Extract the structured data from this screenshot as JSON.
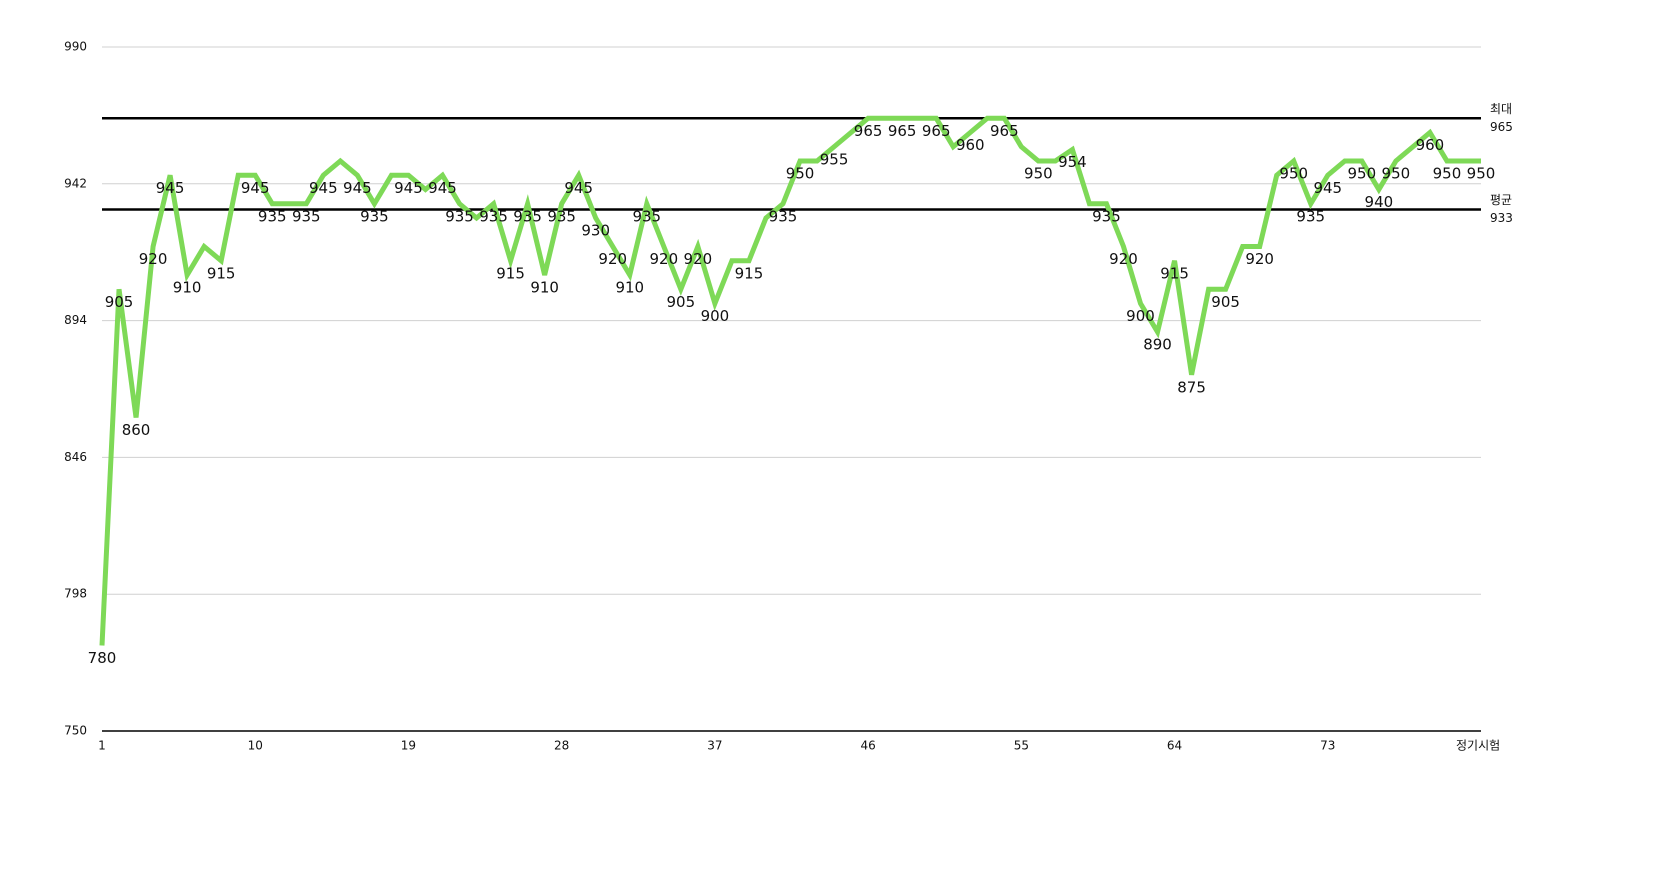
{
  "chart_data": {
    "type": "line",
    "x_label": "정기시험",
    "x": [
      1,
      2,
      3,
      4,
      5,
      6,
      7,
      8,
      9,
      10,
      11,
      12,
      13,
      14,
      15,
      16,
      17,
      18,
      19,
      20,
      21,
      22,
      23,
      24,
      25,
      26,
      27,
      28,
      29,
      30,
      31,
      32,
      33,
      34,
      35,
      36,
      37,
      38,
      39,
      40,
      41,
      42,
      43,
      44,
      45,
      46,
      47,
      48,
      49,
      50,
      51,
      52,
      53,
      54,
      55,
      56,
      57,
      58,
      59,
      60,
      61,
      62,
      63,
      64,
      65,
      66,
      67,
      68,
      69,
      70,
      71,
      72,
      73,
      74,
      75,
      76,
      77,
      78,
      79,
      80,
      81,
      82
    ],
    "series": [
      {
        "color": "#7ed957",
        "values": [
          780,
          905,
          860,
          920,
          945,
          910,
          920,
          915,
          945,
          945,
          935,
          935,
          935,
          945,
          950,
          945,
          935,
          945,
          945,
          940,
          945,
          935,
          930,
          935,
          915,
          935,
          910,
          935,
          945,
          930,
          920,
          910,
          935,
          920,
          905,
          920,
          900,
          915,
          915,
          930,
          935,
          950,
          950,
          955,
          960,
          965,
          965,
          965,
          965,
          965,
          955,
          960,
          965,
          965,
          955,
          950,
          950,
          954,
          935,
          935,
          920,
          900,
          890,
          915,
          875,
          905,
          905,
          920,
          920,
          945,
          950,
          935,
          945,
          950,
          950,
          940,
          950,
          955,
          960,
          950,
          950,
          950
        ],
        "value_labels": [
          "780",
          "905",
          "860",
          "920",
          "945",
          "910",
          null,
          "915",
          null,
          "945",
          "935",
          null,
          "935",
          "945",
          null,
          "945",
          "935",
          null,
          "945",
          null,
          "945",
          "935",
          null,
          "935",
          "915",
          "935",
          "910",
          "935",
          "945",
          "930",
          "920",
          "910",
          "935",
          "920",
          "905",
          "920",
          "900",
          null,
          "915",
          null,
          "935",
          "950",
          null,
          "955",
          null,
          "965",
          null,
          "965",
          null,
          "965",
          null,
          "960",
          null,
          "965",
          null,
          "950",
          null,
          "954",
          null,
          "935",
          "920",
          "900",
          "890",
          "915",
          "875",
          null,
          "905",
          null,
          "920",
          null,
          "950",
          "935",
          "945",
          null,
          "950",
          "940",
          "950",
          null,
          "960",
          "950",
          null,
          "950"
        ]
      }
    ],
    "xlim": [
      1,
      82
    ],
    "xticks": [
      1,
      10,
      19,
      28,
      37,
      46,
      55,
      64,
      73
    ],
    "ylim": [
      750,
      990
    ],
    "yticks": [
      750,
      798,
      846,
      894,
      942,
      990
    ],
    "grid": true,
    "reference_lines": [
      {
        "label": "최대",
        "value": 965
      },
      {
        "label": "평균",
        "value": 933
      }
    ]
  }
}
